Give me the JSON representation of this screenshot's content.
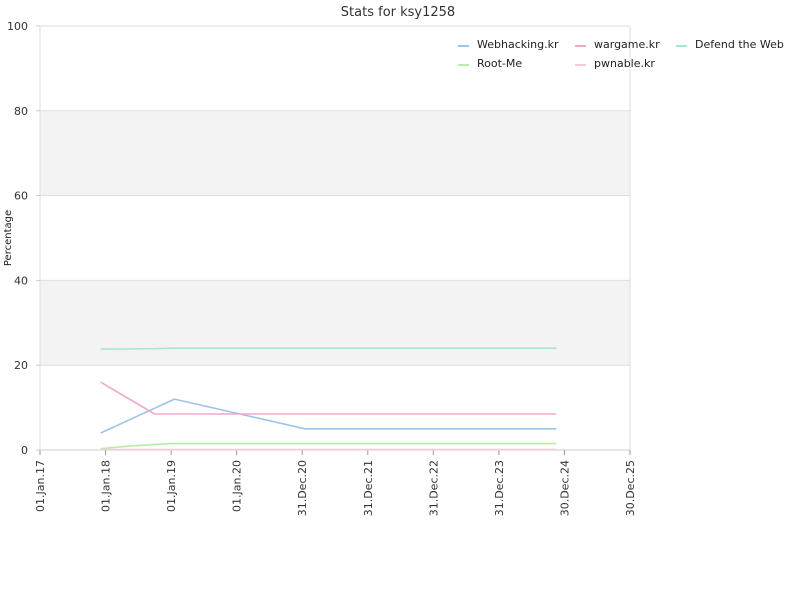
{
  "chart_data": {
    "type": "line",
    "title": "Stats for ksy1258",
    "xlabel": "",
    "ylabel": "Percentage",
    "ylim": [
      0,
      100
    ],
    "yticks": [
      0,
      20,
      40,
      60,
      80,
      100
    ],
    "xlim": [
      "2017-01-01",
      "2025-12-30"
    ],
    "xticks": [
      {
        "label": "01.Jan.17",
        "date": "2017-01-01"
      },
      {
        "label": "01.Jan.18",
        "date": "2018-01-01"
      },
      {
        "label": "01.Jan.19",
        "date": "2019-01-01"
      },
      {
        "label": "01.Jan.20",
        "date": "2020-01-01"
      },
      {
        "label": "31.Dec.20",
        "date": "2020-12-31"
      },
      {
        "label": "31.Dec.21",
        "date": "2021-12-31"
      },
      {
        "label": "31.Dec.22",
        "date": "2022-12-31"
      },
      {
        "label": "31.Dec.23",
        "date": "2023-12-31"
      },
      {
        "label": "30.Dec.24",
        "date": "2024-12-30"
      },
      {
        "label": "30.Dec.25",
        "date": "2025-12-30"
      }
    ],
    "grid": true,
    "alternating_bands": true,
    "legend_position": "top-right",
    "series": [
      {
        "name": "Webhacking.kr",
        "color": "#9ec4e8",
        "points": [
          [
            "2017-12-05",
            4
          ],
          [
            "2019-01-20",
            12
          ],
          [
            "2021-01-15",
            5
          ],
          [
            "2024-11-15",
            5
          ]
        ]
      },
      {
        "name": "wargame.kr",
        "color": "#f0a8c8",
        "points": [
          [
            "2017-12-05",
            16
          ],
          [
            "2018-10-01",
            8.5
          ],
          [
            "2024-11-15",
            8.5
          ]
        ]
      },
      {
        "name": "Defend the Web",
        "color": "#a8e8cc",
        "points": [
          [
            "2017-12-05",
            23.8
          ],
          [
            "2018-10-01",
            23.9
          ],
          [
            "2019-01-01",
            24
          ],
          [
            "2024-11-15",
            24
          ]
        ]
      },
      {
        "name": "Root-Me",
        "color": "#b6eea6",
        "points": [
          [
            "2017-12-05",
            0.3
          ],
          [
            "2018-06-01",
            1
          ],
          [
            "2019-01-01",
            1.5
          ],
          [
            "2024-11-15",
            1.5
          ]
        ]
      },
      {
        "name": "pwnable.kr",
        "color": "#f6cad8",
        "points": [
          [
            "2017-12-05",
            0.1
          ],
          [
            "2024-11-15",
            0.1
          ]
        ]
      }
    ]
  }
}
